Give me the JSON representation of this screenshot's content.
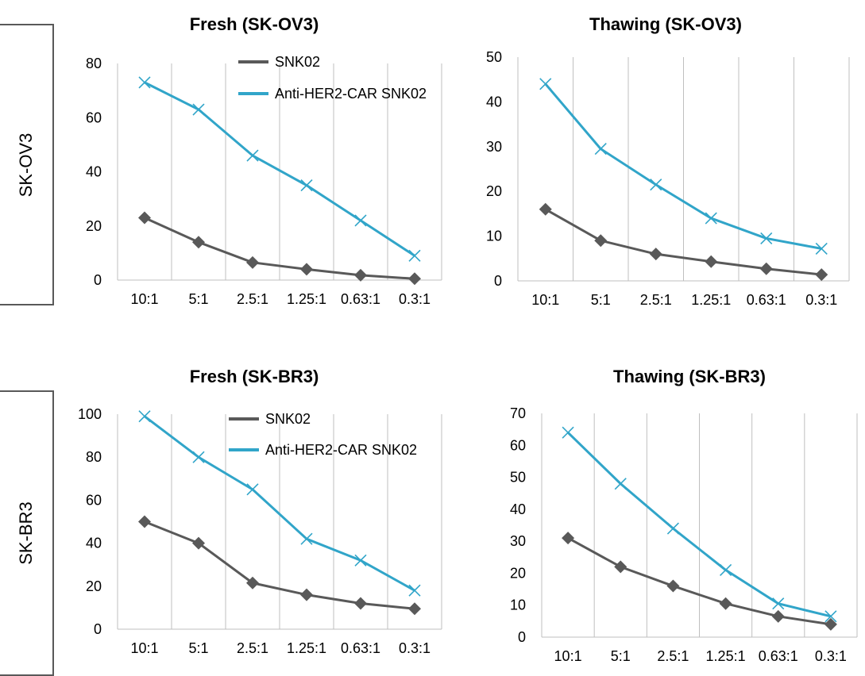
{
  "row_labels": [
    "SK-OV3",
    "SK-BR3"
  ],
  "colors": {
    "snk02": "#595959",
    "car": "#31a5c9",
    "grid": "#bfbfbf"
  },
  "chart_data": [
    {
      "type": "line",
      "title": "Fresh (SK-OV3)",
      "categories": [
        "10:1",
        "5:1",
        "2.5:1",
        "1.25:1",
        "0.63:1",
        "0.3:1"
      ],
      "ylim": [
        0,
        80
      ],
      "yticks": [
        0,
        20,
        40,
        60,
        80
      ],
      "grid": "vertical",
      "legend": "top",
      "series": [
        {
          "name": "SNK02",
          "marker": "diamond",
          "values": [
            23,
            14,
            6.5,
            4,
            1.8,
            0.5
          ]
        },
        {
          "name": "Anti-HER2-CAR SNK02",
          "marker": "x",
          "values": [
            73,
            63,
            46,
            35,
            22,
            9
          ]
        }
      ]
    },
    {
      "type": "line",
      "title": "Thawing (SK-OV3)",
      "categories": [
        "10:1",
        "5:1",
        "2.5:1",
        "1.25:1",
        "0.63:1",
        "0.3:1"
      ],
      "ylim": [
        0,
        50
      ],
      "yticks": [
        0,
        10,
        20,
        30,
        40,
        50
      ],
      "grid": "vertical",
      "legend": "none",
      "series": [
        {
          "name": "SNK02",
          "marker": "diamond",
          "values": [
            16,
            9,
            6,
            4.3,
            2.7,
            1.4
          ]
        },
        {
          "name": "Anti-HER2-CAR SNK02",
          "marker": "x",
          "values": [
            44,
            29.5,
            21.5,
            14,
            9.5,
            7.2
          ]
        }
      ]
    },
    {
      "type": "line",
      "title": "Fresh (SK-BR3)",
      "categories": [
        "10:1",
        "5:1",
        "2.5:1",
        "1.25:1",
        "0.63:1",
        "0.3:1"
      ],
      "ylim": [
        0,
        100
      ],
      "yticks": [
        0,
        20,
        40,
        60,
        80,
        100
      ],
      "grid": "vertical",
      "legend": "top",
      "series": [
        {
          "name": "SNK02",
          "marker": "diamond",
          "values": [
            50,
            40,
            21.5,
            16,
            12,
            9.5
          ]
        },
        {
          "name": "Anti-HER2-CAR SNK02",
          "marker": "x",
          "values": [
            99,
            80,
            65,
            42,
            32,
            18
          ]
        }
      ]
    },
    {
      "type": "line",
      "title": "Thawing (SK-BR3)",
      "categories": [
        "10:1",
        "5:1",
        "2.5:1",
        "1.25:1",
        "0.63:1",
        "0.3:1"
      ],
      "ylim": [
        0,
        70
      ],
      "yticks": [
        0,
        10,
        20,
        30,
        40,
        50,
        60,
        70
      ],
      "grid": "vertical",
      "legend": "none",
      "series": [
        {
          "name": "SNK02",
          "marker": "diamond",
          "values": [
            31,
            22,
            16,
            10.5,
            6.5,
            4
          ]
        },
        {
          "name": "Anti-HER2-CAR SNK02",
          "marker": "x",
          "values": [
            64,
            48,
            34,
            21,
            10.5,
            6.5
          ]
        }
      ]
    }
  ]
}
